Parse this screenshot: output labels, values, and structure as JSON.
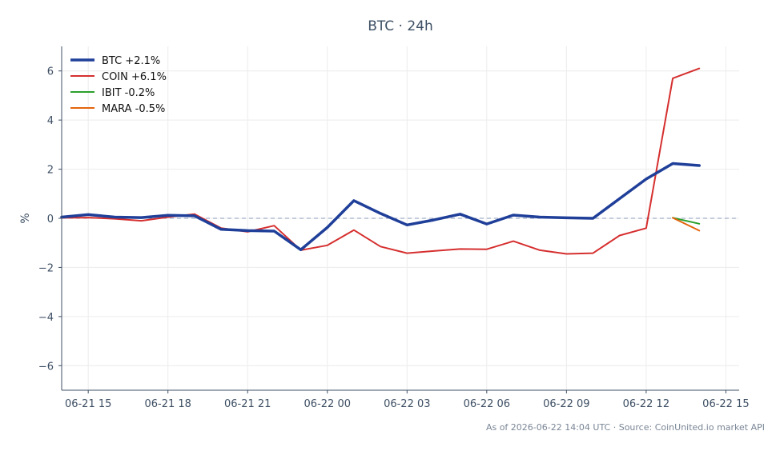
{
  "chart_data": {
    "type": "line",
    "title": "BTC · 24h",
    "ylabel": "%",
    "xlabel": "",
    "ylim": [
      -7,
      7
    ],
    "yticks": [
      -6,
      -4,
      -2,
      0,
      2,
      4,
      6
    ],
    "ytick_labels": [
      "−6",
      "−4",
      "−2",
      "0",
      "2",
      "4",
      "6"
    ],
    "xlim": [
      14,
      39.5
    ],
    "xticks": [
      15,
      18,
      21,
      24,
      27,
      30,
      33,
      36,
      39
    ],
    "xtick_labels": [
      "06-21 15",
      "06-21 18",
      "06-21 21",
      "06-22 00",
      "06-22 03",
      "06-22 06",
      "06-22 09",
      "06-22 12",
      "06-22 15"
    ],
    "x_unit": "hours from 06-21 00:00",
    "grid": true,
    "legend_position": "top-left",
    "zero_line": true,
    "series": [
      {
        "name": "BTC +2.1%",
        "color": "#1f3f99",
        "x": [
          14,
          15,
          16,
          17,
          18,
          19,
          20,
          21,
          22,
          23,
          24,
          25,
          26,
          27,
          28,
          29,
          30,
          31,
          32,
          33,
          34,
          35,
          36,
          37,
          38
        ],
        "values": [
          0.05,
          0.15,
          0.05,
          0.03,
          0.12,
          0.1,
          -0.45,
          -0.5,
          -0.52,
          -1.28,
          -0.37,
          0.72,
          0.2,
          -0.27,
          -0.07,
          0.17,
          -0.23,
          0.13,
          0.05,
          0.02,
          0.0,
          0.8,
          1.6,
          2.23,
          2.15
        ]
      },
      {
        "name": "COIN +6.1%",
        "color": "#d62f2f",
        "x": [
          14,
          15,
          16,
          17,
          18,
          19,
          20,
          21,
          22,
          23,
          24,
          25,
          26,
          27,
          28,
          29,
          30,
          31,
          32,
          33,
          34,
          35,
          36,
          37,
          38
        ],
        "values": [
          0.02,
          0.03,
          -0.02,
          -0.1,
          0.05,
          0.17,
          -0.4,
          -0.55,
          -0.3,
          -1.3,
          -1.1,
          -0.48,
          -1.15,
          -1.42,
          -1.33,
          -1.25,
          -1.26,
          -0.93,
          -1.3,
          -1.45,
          -1.42,
          -0.7,
          -0.4,
          5.7,
          6.1
        ]
      },
      {
        "name": "IBIT -0.2%",
        "color": "#2ca02c",
        "x": [
          37,
          38
        ],
        "values": [
          0.02,
          -0.22
        ]
      },
      {
        "name": "MARA -0.5%",
        "color": "#e3640c",
        "x": [
          37,
          38
        ],
        "values": [
          0.02,
          -0.5
        ]
      }
    ]
  },
  "footer": "As of 2026-06-22 14:04 UTC · Source: CoinUnited.io market API"
}
